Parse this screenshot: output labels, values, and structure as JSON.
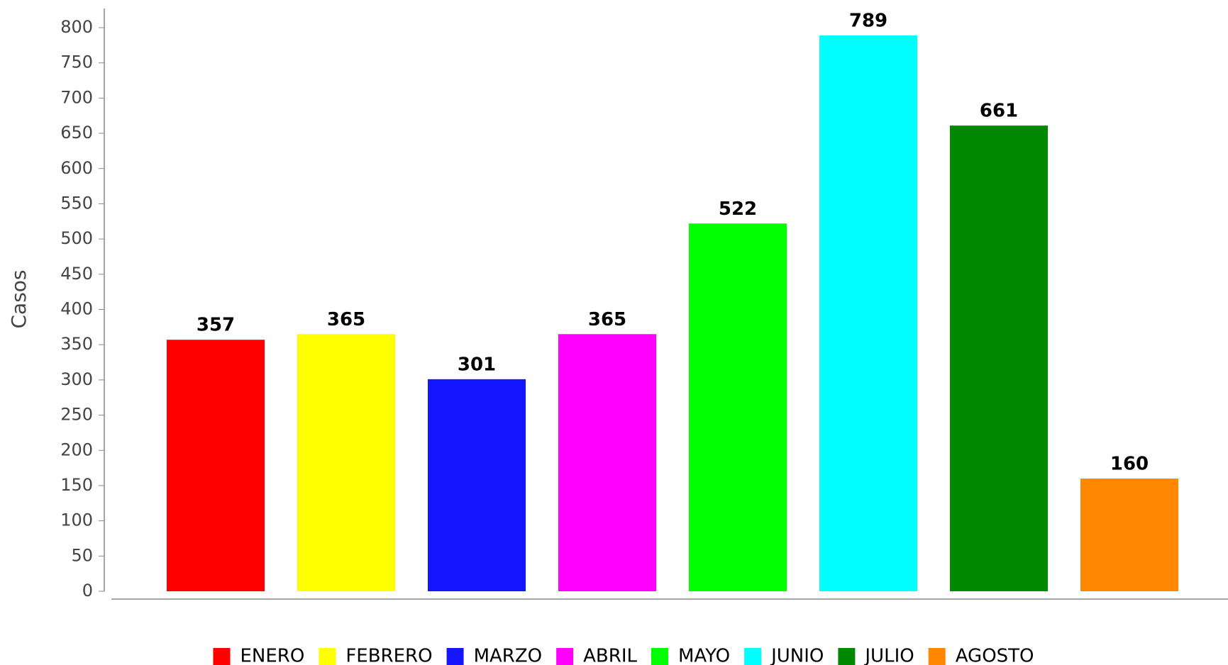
{
  "chart_data": {
    "type": "bar",
    "y_label": "Casos",
    "categories": [
      null
    ],
    "series": [
      {
        "name": "ENERO",
        "color": "#ff0000",
        "values": [
          357
        ]
      },
      {
        "name": "FEBRERO",
        "color": "#ffff00",
        "values": [
          365
        ]
      },
      {
        "name": "MARZO",
        "color": "#1515ff",
        "values": [
          301
        ]
      },
      {
        "name": "ABRIL",
        "color": "#ff00ff",
        "values": [
          365
        ]
      },
      {
        "name": "MAYO",
        "color": "#00ff00",
        "values": [
          522
        ]
      },
      {
        "name": "JUNIO",
        "color": "#00ffff",
        "values": [
          789
        ]
      },
      {
        "name": "JULIO",
        "color": "#008800",
        "values": [
          661
        ]
      },
      {
        "name": "AGOSTO",
        "color": "#ff8800",
        "values": [
          160
        ]
      }
    ],
    "ylim": [
      0,
      800
    ],
    "yticks": [
      0,
      50,
      100,
      150,
      200,
      250,
      300,
      350,
      400,
      450,
      500,
      550,
      600,
      650,
      700,
      750,
      800
    ],
    "grid": false,
    "legend": "bottom"
  }
}
